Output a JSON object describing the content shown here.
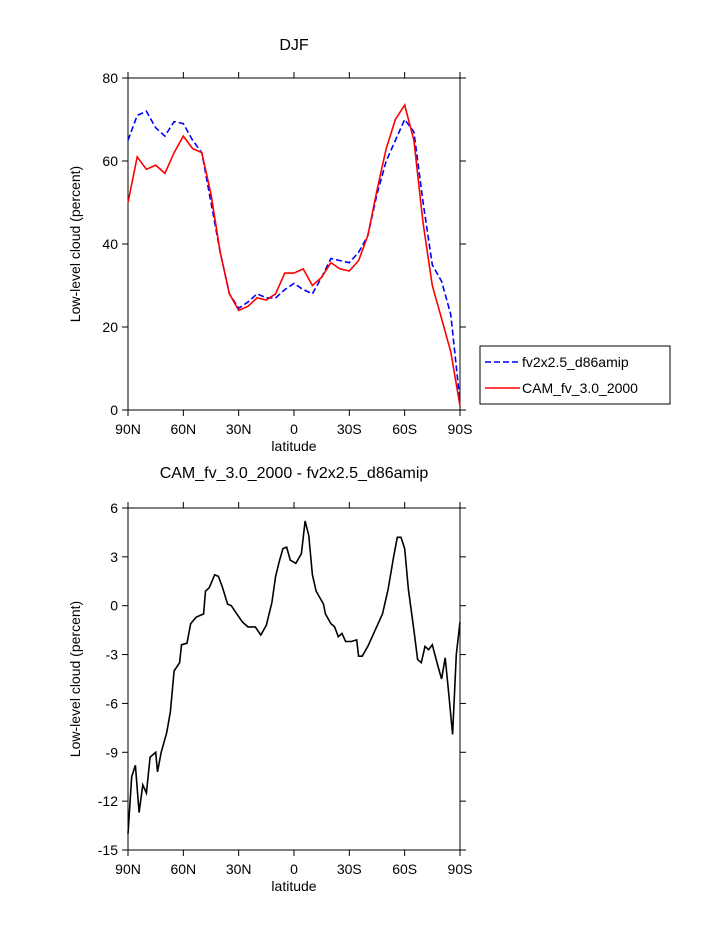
{
  "chart_data": [
    {
      "type": "line",
      "title": "DJF",
      "xlabel": "latitude",
      "ylabel": "Low-level cloud (percent)",
      "xlim": [
        90,
        -90
      ],
      "xticks": [
        {
          "value": 90,
          "label": "90N"
        },
        {
          "value": 60,
          "label": "60N"
        },
        {
          "value": 30,
          "label": "30N"
        },
        0,
        {
          "value": -30,
          "label": "30S"
        },
        {
          "value": -60,
          "label": "60S"
        },
        {
          "value": -90,
          "label": "90S"
        }
      ],
      "ylim": [
        0,
        80
      ],
      "yticks": [
        0,
        20,
        40,
        60,
        80
      ],
      "legend": "right",
      "x": [
        90,
        85,
        80,
        75,
        70,
        65,
        60,
        55,
        50,
        45,
        40,
        35,
        30,
        25,
        20,
        15,
        10,
        5,
        0,
        -5,
        -10,
        -15,
        -20,
        -25,
        -30,
        -35,
        -40,
        -45,
        -50,
        -55,
        -60,
        -65,
        -70,
        -75,
        -80,
        -85,
        -90
      ],
      "series": [
        {
          "name": "fv2x2.5_d86amip",
          "color": "#0000ff",
          "dash": true,
          "values": [
            65,
            71,
            72,
            68,
            66,
            69.5,
            69,
            65,
            62,
            50,
            38,
            28,
            24.5,
            26,
            28,
            27,
            27,
            29,
            30.5,
            29,
            28,
            32,
            36.5,
            36,
            35.5,
            38,
            42,
            52,
            60,
            65,
            70,
            67,
            50,
            35,
            31,
            23,
            2
          ]
        },
        {
          "name": "CAM_fv_3.0_2000",
          "color": "#ff0000",
          "dash": false,
          "values": [
            50,
            61,
            58,
            59,
            57,
            62,
            66,
            63,
            62,
            52,
            38,
            28,
            24,
            25,
            27,
            26.5,
            28,
            33,
            33,
            34,
            30,
            32,
            35.5,
            34,
            33.5,
            36,
            42,
            53,
            63,
            70,
            73.5,
            65,
            45,
            30,
            22,
            14,
            1
          ]
        }
      ]
    },
    {
      "type": "line",
      "title": "CAM_fv_3.0_2000 - fv2x2.5_d86amip",
      "xlabel": "latitude",
      "ylabel": "Low-level cloud (percent)",
      "xlim": [
        90,
        -90
      ],
      "xticks": [
        {
          "value": 90,
          "label": "90N"
        },
        {
          "value": 60,
          "label": "60N"
        },
        {
          "value": 30,
          "label": "30N"
        },
        0,
        {
          "value": -30,
          "label": "30S"
        },
        {
          "value": -60,
          "label": "60S"
        },
        {
          "value": -90,
          "label": "90S"
        }
      ],
      "ylim": [
        -15,
        6
      ],
      "yticks": [
        -15,
        -12,
        -9,
        -6,
        -3,
        0,
        3,
        6
      ],
      "x": [
        90,
        88,
        86,
        84,
        82,
        80,
        78,
        75,
        74,
        72,
        69,
        67,
        65,
        62,
        61,
        58,
        56,
        53,
        49,
        48,
        46,
        43,
        41,
        39,
        36,
        34,
        31,
        28,
        25,
        21,
        18,
        15,
        12,
        10,
        8,
        6,
        4,
        2,
        -1,
        -4,
        -6,
        -8,
        -10,
        -12,
        -16,
        -17,
        -20,
        -22,
        -24,
        -26,
        -28,
        -31,
        -34,
        -35,
        -37,
        -40,
        -44,
        -48,
        -51,
        -54,
        -56,
        -58,
        -60,
        -62,
        -65,
        -67,
        -69,
        -71,
        -73,
        -75,
        -78,
        -80,
        -82,
        -84,
        -86,
        -88,
        -90
      ],
      "series": [
        {
          "color": "#000000",
          "dash": false,
          "values": [
            -14,
            -10.5,
            -9.8,
            -12.7,
            -11,
            -11.5,
            -9.3,
            -9,
            -10.2,
            -9,
            -7.8,
            -6.5,
            -4,
            -3.5,
            -2.4,
            -2.3,
            -1.1,
            -0.7,
            -0.5,
            0.9,
            1.1,
            1.9,
            1.8,
            1.2,
            0.1,
            0,
            -0.5,
            -1,
            -1.3,
            -1.3,
            -1.8,
            -1.2,
            0.2,
            1.8,
            2.7,
            3.5,
            3.6,
            2.8,
            2.6,
            3.2,
            5.2,
            4.3,
            1.9,
            0.9,
            0.1,
            -0.5,
            -1.1,
            -1.3,
            -1.9,
            -1.7,
            -2.2,
            -2.2,
            -2.1,
            -3.1,
            -3.1,
            -2.5,
            -1.5,
            -0.5,
            1,
            3,
            4.2,
            4.2,
            3.5,
            1,
            -1.5,
            -3.3,
            -3.5,
            -2.5,
            -2.7,
            -2.4,
            -3.7,
            -4.5,
            -3.2,
            -5.5,
            -7.9,
            -3,
            -1
          ]
        }
      ]
    }
  ]
}
